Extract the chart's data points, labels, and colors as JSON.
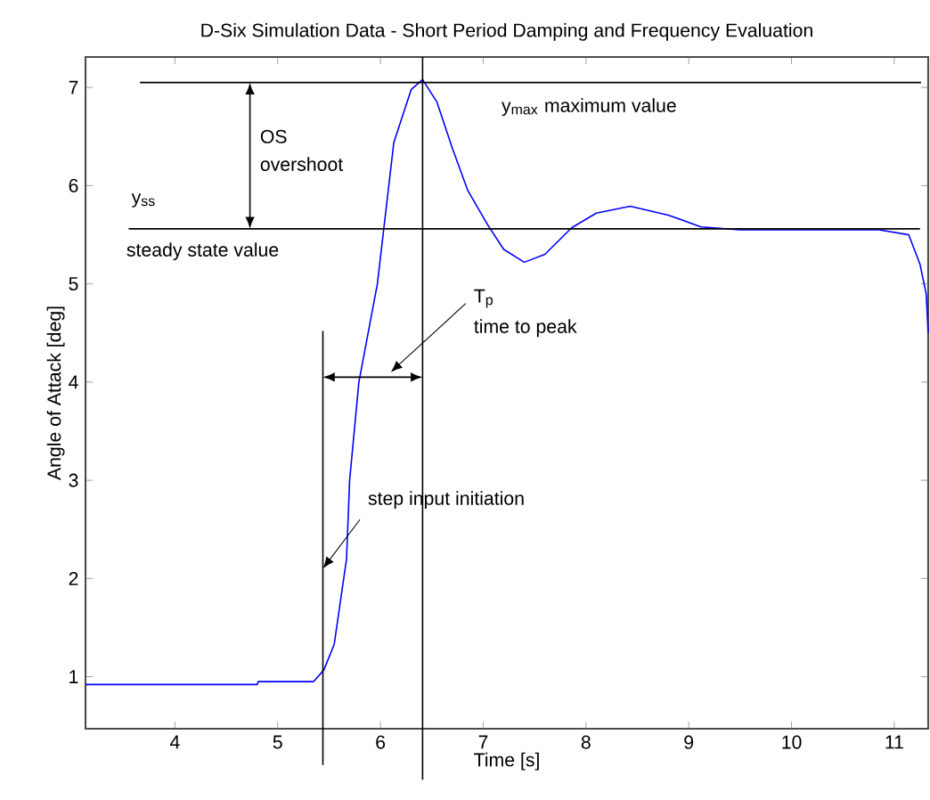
{
  "chart_data": {
    "type": "line",
    "title": "D-Six Simulation Data - Short Period Damping and Frequency Evaluation",
    "xlabel": "Time [s]",
    "ylabel": "Angle of Attack [deg]",
    "xlim": [
      3.13,
      11.33
    ],
    "ylim": [
      0.47,
      7.31
    ],
    "xticks": [
      4,
      5,
      6,
      7,
      8,
      9,
      10,
      11
    ],
    "yticks": [
      1,
      2,
      3,
      4,
      5,
      6,
      7
    ],
    "series": [
      {
        "color": "#0000ff",
        "x": [
          3.13,
          4.8,
          4.81,
          5.35,
          5.45,
          5.55,
          5.67,
          5.7,
          5.79,
          5.97,
          6.13,
          6.3,
          6.41,
          6.55,
          6.7,
          6.85,
          7.05,
          7.2,
          7.4,
          7.6,
          7.86,
          8.1,
          8.43,
          8.8,
          9.12,
          9.5,
          10.0,
          10.5,
          10.85,
          11.14,
          11.25,
          11.31,
          11.33
        ],
        "values": [
          0.92,
          0.92,
          0.95,
          0.95,
          1.07,
          1.33,
          2.2,
          3.0,
          4.0,
          5.0,
          6.44,
          6.98,
          7.08,
          6.85,
          6.38,
          5.95,
          5.59,
          5.35,
          5.22,
          5.3,
          5.57,
          5.72,
          5.79,
          5.7,
          5.58,
          5.55,
          5.55,
          5.55,
          5.55,
          5.5,
          5.2,
          4.9,
          4.5
        ]
      }
    ],
    "ref_lines": [
      {
        "axis": "y",
        "value": 7.05,
        "color": "#000000"
      },
      {
        "axis": "y",
        "value": 5.56,
        "color": "#000000"
      },
      {
        "axis": "x",
        "value": 5.44,
        "color": "#000000"
      },
      {
        "axis": "x",
        "value": 6.41,
        "color": "#000000"
      }
    ],
    "annotations": [
      "y$_{max}$ maximum value",
      "OS",
      "overshoot",
      "y$_{ss}$",
      "steady state value",
      "T$_{p}$",
      "time to peak",
      {
        "text": "step input initiation",
        "x": 5.44,
        "y": 2.1
      }
    ],
    "grid": false
  }
}
